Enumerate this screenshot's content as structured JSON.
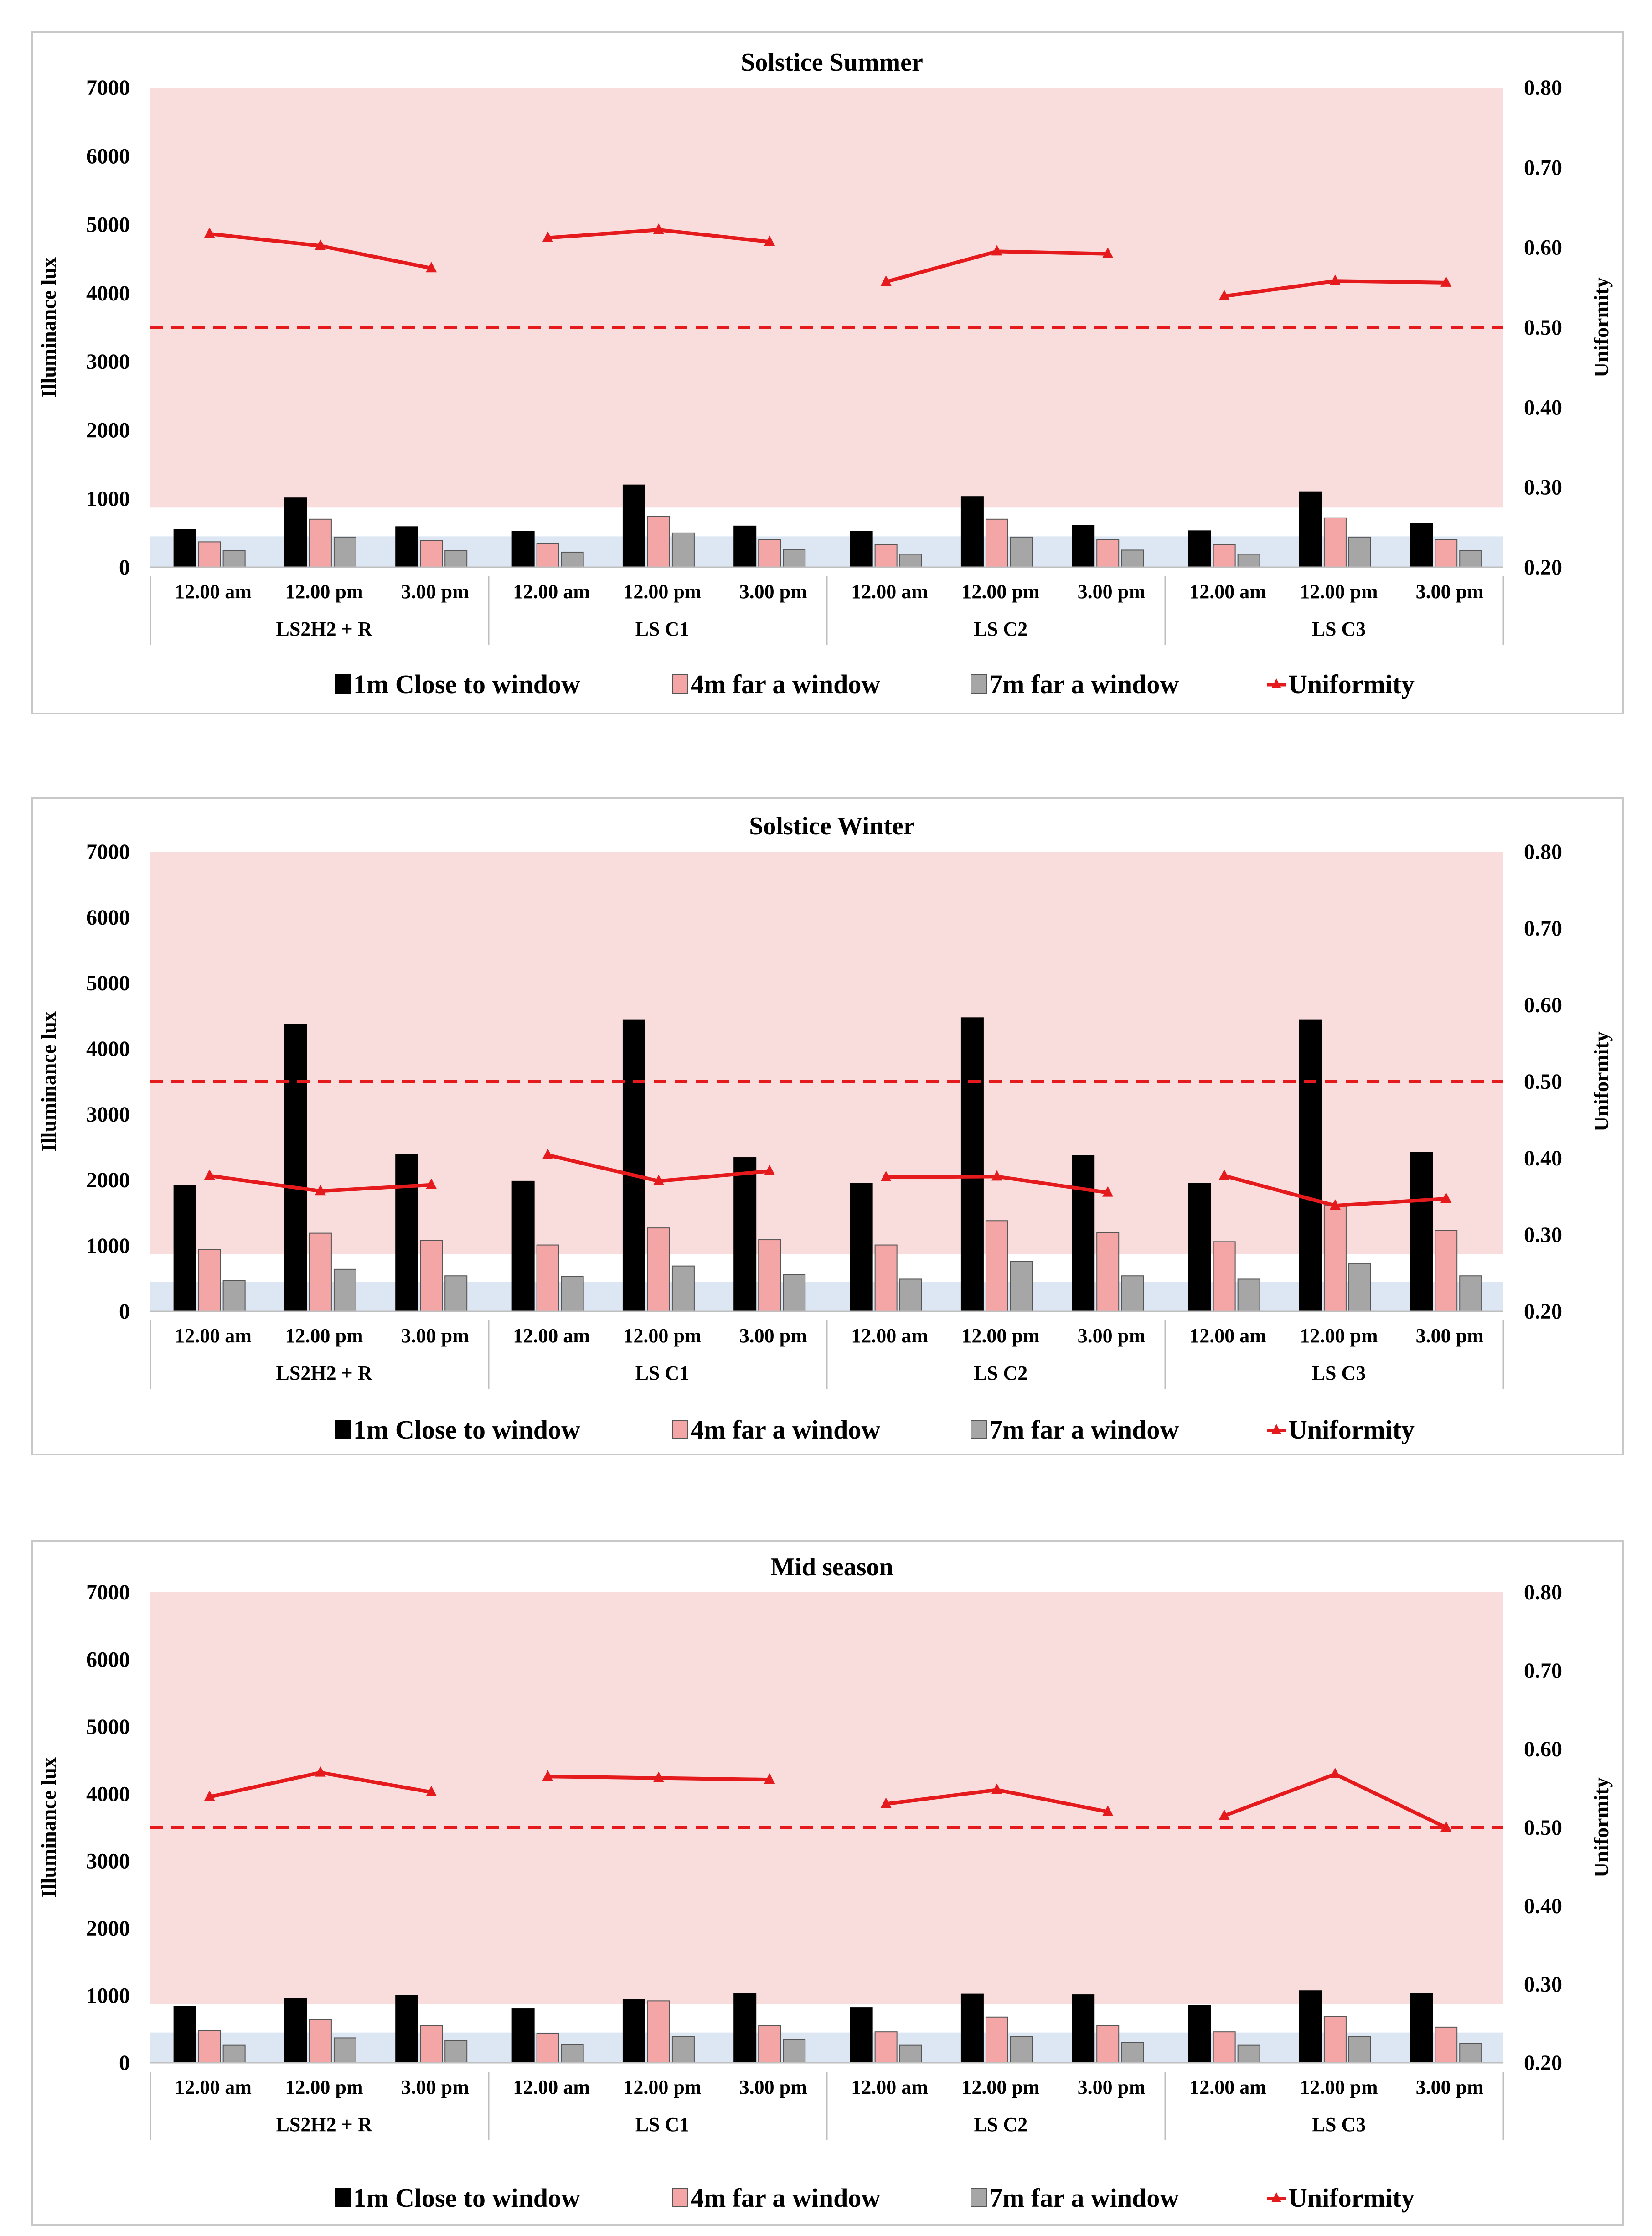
{
  "colors": {
    "close": "#000000",
    "mid": "#f4a6a6",
    "far": "#a6a6a6",
    "uniformity": "#e41a1c",
    "band_high": "#f9dcdc",
    "band_low": "#dde7f3"
  },
  "chart_data": [
    {
      "type": "bar",
      "title": "Solstice Summer",
      "ylabel": "Illuminance lux",
      "y2label": "Uniformity",
      "ylim": [
        0,
        7000
      ],
      "y2lim": [
        0.2,
        0.8
      ],
      "yticks": [
        "0",
        "1000",
        "2000",
        "3000",
        "4000",
        "5000",
        "6000",
        "7000"
      ],
      "y2ticks": [
        "0.20",
        "0.30",
        "0.40",
        "0.50",
        "0.60",
        "0.70",
        "0.80"
      ],
      "groups": [
        "LS2H2 + R",
        "LS C1",
        "LS C2",
        "LS C3"
      ],
      "categories": [
        "12.00 am",
        "12.00 pm",
        "3.00 pm"
      ],
      "threshold": 0.5,
      "series": [
        {
          "name": "1m Close to window",
          "values": [
            [
              550,
              1010,
              590
            ],
            [
              520,
              1200,
              600
            ],
            [
              520,
              1030,
              610
            ],
            [
              530,
              1100,
              640
            ]
          ]
        },
        {
          "name": "4m far a window",
          "values": [
            [
              370,
              700,
              390
            ],
            [
              340,
              740,
              400
            ],
            [
              330,
              700,
              400
            ],
            [
              330,
              720,
              400
            ]
          ]
        },
        {
          "name": "7m far a window",
          "values": [
            [
              240,
              440,
              240
            ],
            [
              220,
              500,
              260
            ],
            [
              190,
              440,
              250
            ],
            [
              190,
              440,
              240
            ]
          ]
        }
      ],
      "uniformity": {
        "name": "Uniformity",
        "values": [
          [
            0.617,
            0.602,
            0.574
          ],
          [
            0.612,
            0.622,
            0.607
          ],
          [
            0.557,
            0.595,
            0.592
          ],
          [
            0.539,
            0.558,
            0.556
          ]
        ]
      },
      "legend_position": "bottom"
    },
    {
      "type": "bar",
      "title": "Solstice Winter",
      "ylabel": "Illuminance lux",
      "y2label": "Uniformity",
      "ylim": [
        0,
        7000
      ],
      "y2lim": [
        0.2,
        0.8
      ],
      "yticks": [
        "0",
        "1000",
        "2000",
        "3000",
        "4000",
        "5000",
        "6000",
        "7000"
      ],
      "y2ticks": [
        "0.20",
        "0.30",
        "0.40",
        "0.50",
        "0.60",
        "0.70",
        "0.80"
      ],
      "groups": [
        "LS2H2 + R",
        "LS C1",
        "LS C2",
        "LS C3"
      ],
      "categories": [
        "12.00 am",
        "12.00 pm",
        "3.00 pm"
      ],
      "threshold": 0.5,
      "series": [
        {
          "name": "1m Close to window",
          "values": [
            [
              1920,
              4370,
              2390
            ],
            [
              1980,
              4440,
              2340
            ],
            [
              1950,
              4470,
              2370
            ],
            [
              1950,
              4440,
              2420
            ]
          ]
        },
        {
          "name": "4m far a window",
          "values": [
            [
              940,
              1190,
              1080
            ],
            [
              1010,
              1270,
              1090
            ],
            [
              1010,
              1380,
              1200
            ],
            [
              1060,
              1610,
              1230
            ]
          ]
        },
        {
          "name": "7m far a window",
          "values": [
            [
              470,
              640,
              540
            ],
            [
              530,
              690,
              560
            ],
            [
              490,
              760,
              540
            ],
            [
              490,
              730,
              540
            ]
          ]
        }
      ],
      "uniformity": {
        "name": "Uniformity",
        "values": [
          [
            0.377,
            0.357,
            0.365
          ],
          [
            0.404,
            0.37,
            0.383
          ],
          [
            0.375,
            0.376,
            0.355
          ],
          [
            0.377,
            0.338,
            0.347
          ]
        ]
      },
      "legend_position": "bottom"
    },
    {
      "type": "bar",
      "title": "Mid season",
      "ylabel": "Illuminance lux",
      "y2label": "Uniformity",
      "ylim": [
        0,
        7000
      ],
      "y2lim": [
        0.2,
        0.8
      ],
      "yticks": [
        "0",
        "1000",
        "2000",
        "3000",
        "4000",
        "5000",
        "6000",
        "7000"
      ],
      "y2ticks": [
        "0.20",
        "0.30",
        "0.40",
        "0.50",
        "0.60",
        "0.70",
        "0.80"
      ],
      "groups": [
        "LS2H2 + R",
        "LS C1",
        "LS C2",
        "LS C3"
      ],
      "categories": [
        "12.00 am",
        "12.00 pm",
        "3.00 pm"
      ],
      "threshold": 0.5,
      "series": [
        {
          "name": "1m Close to window",
          "values": [
            [
              840,
              960,
              1000
            ],
            [
              800,
              940,
              1030
            ],
            [
              820,
              1020,
              1010
            ],
            [
              850,
              1070,
              1030
            ]
          ]
        },
        {
          "name": "4m far a window",
          "values": [
            [
              480,
              640,
              550
            ],
            [
              440,
              920,
              550
            ],
            [
              460,
              680,
              550
            ],
            [
              460,
              690,
              530
            ]
          ]
        },
        {
          "name": "7m far a window",
          "values": [
            [
              260,
              370,
              330
            ],
            [
              270,
              390,
              340
            ],
            [
              260,
              390,
              300
            ],
            [
              260,
              390,
              290
            ]
          ]
        }
      ],
      "uniformity": {
        "name": "Uniformity",
        "values": [
          [
            0.539,
            0.57,
            0.545
          ],
          [
            0.565,
            0.563,
            0.561
          ],
          [
            0.53,
            0.548,
            0.52
          ],
          [
            0.515,
            0.568,
            0.5
          ]
        ]
      },
      "legend_position": "bottom"
    }
  ]
}
